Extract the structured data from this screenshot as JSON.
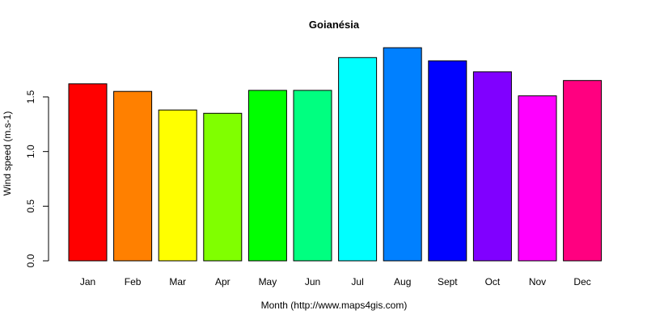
{
  "chart_data": {
    "type": "bar",
    "title": "Goianésia",
    "xlabel": "Month (http://www.maps4gis.com)",
    "ylabel": "Wind speed (m.s-1)",
    "categories": [
      "Jan",
      "Feb",
      "Mar",
      "Apr",
      "May",
      "Jun",
      "Jul",
      "Aug",
      "Sept",
      "Oct",
      "Nov",
      "Dec"
    ],
    "values": [
      1.62,
      1.55,
      1.38,
      1.35,
      1.56,
      1.56,
      1.86,
      1.95,
      1.83,
      1.73,
      1.51,
      1.65
    ],
    "colors": [
      "#FF0000",
      "#FF8000",
      "#FFFF00",
      "#80FF00",
      "#00FF00",
      "#00FF80",
      "#00FFFF",
      "#0080FF",
      "#0000FF",
      "#8000FF",
      "#FF00FF",
      "#FF0080"
    ],
    "yticks": [
      0.0,
      0.5,
      1.0,
      1.5
    ],
    "ytick_labels": [
      "0.0",
      "0.5",
      "1.0",
      "1.5"
    ],
    "ylim": [
      0,
      1.95
    ],
    "grid": false,
    "legend": null
  }
}
